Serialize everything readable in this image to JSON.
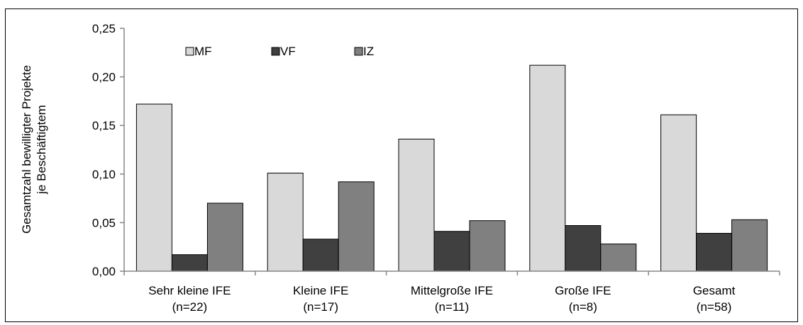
{
  "chart_data": {
    "type": "bar",
    "ylabel_lines": [
      "Gesamtzahl bewilligter Projekte",
      "je Beschäftigtem"
    ],
    "xlabel": "",
    "ylim": [
      0,
      0.25
    ],
    "yticks": [
      "0,00",
      "0,05",
      "0,10",
      "0,15",
      "0,20",
      "0,25"
    ],
    "ytick_values": [
      0,
      0.05,
      0.1,
      0.15,
      0.2,
      0.25
    ],
    "categories": [
      {
        "line1": "Sehr kleine IFE",
        "line2": "(n=22)"
      },
      {
        "line1": "Kleine IFE",
        "line2": "(n=17)"
      },
      {
        "line1": "Mittelgroße IFE",
        "line2": "(n=11)"
      },
      {
        "line1": "Große IFE",
        "line2": "(n=8)"
      },
      {
        "line1": "Gesamt",
        "line2": "(n=58)"
      }
    ],
    "series": [
      {
        "name": "MF",
        "color": "#d9d9d9",
        "values": [
          0.172,
          0.101,
          0.136,
          0.212,
          0.161
        ]
      },
      {
        "name": "VF",
        "color": "#404040",
        "values": [
          0.017,
          0.033,
          0.041,
          0.047,
          0.039
        ]
      },
      {
        "name": "IZ",
        "color": "#808080",
        "values": [
          0.07,
          0.092,
          0.052,
          0.028,
          0.053
        ]
      }
    ],
    "legend_position": "top-left",
    "grid": false
  }
}
